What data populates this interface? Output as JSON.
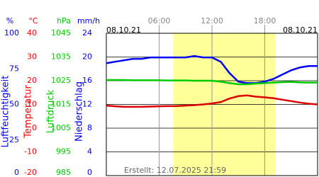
{
  "chart_data": {
    "type": "line",
    "date_left": "08.10.21",
    "date_right": "08.10.21",
    "footer": "Erstellt: 12.07.2025 21:59",
    "xlim": [
      0,
      24
    ],
    "xticks": [
      {
        "value": 6,
        "label": "06:00"
      },
      {
        "value": 12,
        "label": "12:00"
      },
      {
        "value": 18,
        "label": "18:00"
      }
    ],
    "daylight": [
      7.6,
      19.2
    ],
    "axes": [
      {
        "unit": "%",
        "label": "Luftfeuchtigkeit",
        "color": "#0000ff",
        "ylim": [
          0,
          100
        ],
        "yticks": [
          0,
          25,
          50,
          75,
          100
        ]
      },
      {
        "unit": "°C",
        "label": "Temperatur",
        "color": "#ff0000",
        "ylim": [
          -20,
          40
        ],
        "yticks": [
          -20,
          -10,
          0,
          10,
          20,
          30,
          40
        ]
      },
      {
        "unit": "hPa",
        "label": "Luftdruck",
        "color": "#00cc00",
        "ylim": [
          985,
          1045
        ],
        "yticks": [
          985,
          995,
          1005,
          1015,
          1025,
          1035,
          1045
        ]
      },
      {
        "unit": "mm/h",
        "label": "Niederschlag",
        "color": "#0000ff",
        "ylim": [
          0,
          24
        ],
        "yticks": [
          0,
          4,
          8,
          12,
          16,
          20,
          24
        ]
      }
    ],
    "x": [
      0,
      1,
      2,
      3,
      4,
      5,
      6,
      7,
      8,
      9,
      10,
      11,
      12,
      13,
      14,
      15,
      16,
      17,
      18,
      19,
      20,
      21,
      22,
      23,
      24
    ],
    "series": [
      {
        "name": "Luftfeuchtigkeit",
        "axis": 0,
        "color": "#0000ff",
        "values": [
          79,
          80,
          81,
          82,
          82,
          83,
          83,
          83,
          83,
          83,
          84,
          83,
          83,
          80,
          72,
          66,
          65,
          65,
          66,
          68,
          71,
          74,
          76,
          77,
          77
        ]
      },
      {
        "name": "Temperatur",
        "axis": 1,
        "color": "#dd0000",
        "values": [
          9.5,
          9.2,
          9.0,
          9.0,
          9.0,
          9.1,
          9.2,
          9.3,
          9.3,
          9.5,
          9.7,
          10.0,
          10.4,
          11.0,
          12.5,
          13.5,
          13.8,
          13.3,
          13.0,
          12.6,
          12.0,
          11.4,
          10.8,
          10.3,
          10.0
        ]
      },
      {
        "name": "Luftdruck",
        "axis": 2,
        "color": "#00cc00",
        "values": [
          1025.3,
          1025.3,
          1025.3,
          1025.2,
          1025.2,
          1025.2,
          1025.2,
          1025.1,
          1025.1,
          1025.1,
          1025.0,
          1025.0,
          1025.0,
          1024.6,
          1024.0,
          1023.5,
          1023.5,
          1023.8,
          1024.0,
          1024.2,
          1024.4,
          1024.5,
          1024.3,
          1024.2,
          1024.2
        ]
      }
    ]
  }
}
